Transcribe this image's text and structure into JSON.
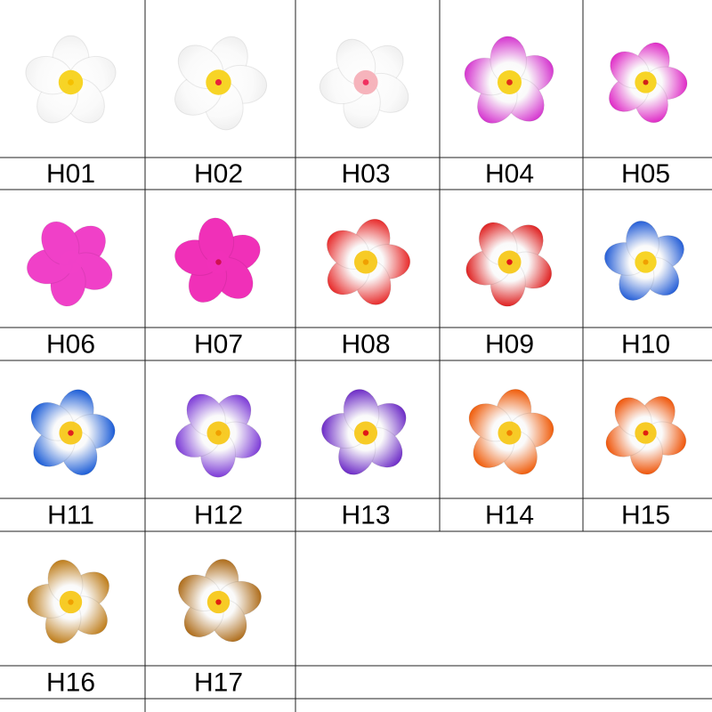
{
  "items": [
    {
      "label": "H01"
    },
    {
      "label": "H02"
    },
    {
      "label": "H03"
    },
    {
      "label": "H04"
    },
    {
      "label": "H05"
    },
    {
      "label": "H06"
    },
    {
      "label": "H07"
    },
    {
      "label": "H08"
    },
    {
      "label": "H09"
    },
    {
      "label": "H10"
    },
    {
      "label": "H11"
    },
    {
      "label": "H12"
    },
    {
      "label": "H13"
    },
    {
      "label": "H14"
    },
    {
      "label": "H15"
    },
    {
      "label": "H16"
    },
    {
      "label": "H17"
    }
  ]
}
